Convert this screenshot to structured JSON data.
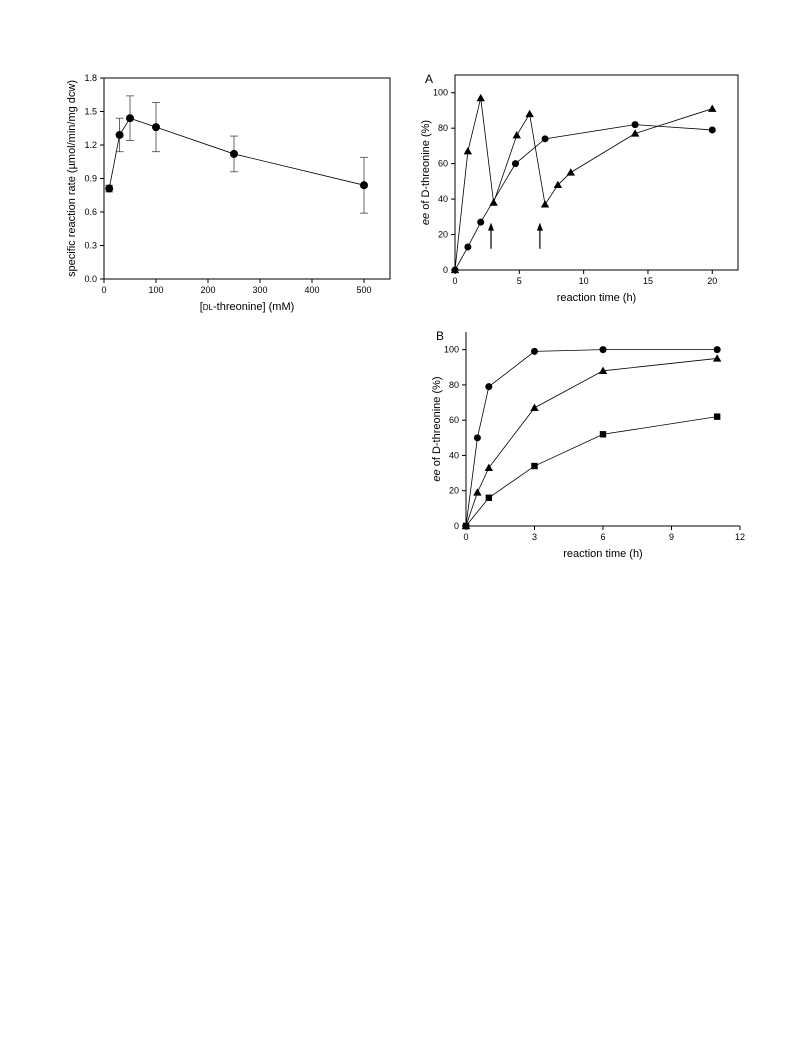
{
  "chart_data": [
    {
      "id": "rate",
      "type": "line",
      "xlabel_pre": "[",
      "xlabel_sc": "dl",
      "xlabel_post": "-threonine] (mM)",
      "ylabel": "specific reaction rate (µmol/min/mg dcw)",
      "xlim": [
        0,
        550
      ],
      "ylim": [
        0,
        1.8
      ],
      "xticks": [
        0,
        100,
        200,
        300,
        400,
        500
      ],
      "yticks": [
        "0.0",
        "0.3",
        "0.6",
        "0.9",
        "1.2",
        "1.5",
        "1.8"
      ],
      "grid": false,
      "series": [
        {
          "marker": "circle",
          "points": [
            {
              "x": 10,
              "y": 0.81,
              "err": 0.03
            },
            {
              "x": 30,
              "y": 1.29,
              "err": 0.15
            },
            {
              "x": 50,
              "y": 1.44,
              "err": 0.2
            },
            {
              "x": 100,
              "y": 1.36,
              "err": 0.22
            },
            {
              "x": 250,
              "y": 1.12,
              "err": 0.16
            },
            {
              "x": 500,
              "y": 0.84,
              "err": 0.25
            }
          ]
        }
      ]
    },
    {
      "id": "A",
      "type": "line",
      "panel_label": "A",
      "xlabel": "reaction time (h)",
      "ylabel_italic": "ee",
      "ylabel_rest": " of D-threonine (%)",
      "xlim": [
        0,
        22
      ],
      "ylim": [
        0,
        110
      ],
      "xticks": [
        0,
        5,
        10,
        15,
        20
      ],
      "yticks": [
        0,
        20,
        40,
        60,
        80,
        100
      ],
      "grid": false,
      "series": [
        {
          "marker": "circle",
          "points": [
            {
              "x": 0,
              "y": 0
            },
            {
              "x": 1,
              "y": 13
            },
            {
              "x": 2,
              "y": 27
            },
            {
              "x": 4.7,
              "y": 60
            },
            {
              "x": 7,
              "y": 74
            },
            {
              "x": 14,
              "y": 82
            },
            {
              "x": 20,
              "y": 79
            }
          ]
        },
        {
          "marker": "triangle",
          "points": [
            {
              "x": 0,
              "y": 0
            },
            {
              "x": 1,
              "y": 67
            },
            {
              "x": 2,
              "y": 97
            },
            {
              "x": 3,
              "y": 38
            },
            {
              "x": 4.8,
              "y": 76
            },
            {
              "x": 5.8,
              "y": 88
            },
            {
              "x": 7,
              "y": 37
            },
            {
              "x": 8,
              "y": 48
            },
            {
              "x": 9,
              "y": 55
            },
            {
              "x": 14,
              "y": 77
            },
            {
              "x": 20,
              "y": 91
            }
          ]
        }
      ],
      "arrows": [
        {
          "x": 2.8,
          "y_from": 12,
          "y_to": 25
        },
        {
          "x": 6.6,
          "y_from": 12,
          "y_to": 25
        }
      ]
    },
    {
      "id": "B",
      "type": "line",
      "panel_label": "B",
      "xlabel": "reaction time (h)",
      "ylabel_italic": "ee",
      "ylabel_rest": " of D-threonine (%)",
      "xlim": [
        0,
        12
      ],
      "ylim": [
        0,
        110
      ],
      "xticks": [
        0,
        3,
        6,
        9,
        12
      ],
      "yticks": [
        0,
        20,
        40,
        60,
        80,
        100
      ],
      "grid": false,
      "series": [
        {
          "marker": "circle",
          "points": [
            {
              "x": 0,
              "y": 0
            },
            {
              "x": 0.5,
              "y": 50
            },
            {
              "x": 1,
              "y": 79
            },
            {
              "x": 3,
              "y": 99
            },
            {
              "x": 6,
              "y": 100
            },
            {
              "x": 11,
              "y": 100
            }
          ]
        },
        {
          "marker": "triangle",
          "points": [
            {
              "x": 0,
              "y": 0
            },
            {
              "x": 0.5,
              "y": 19
            },
            {
              "x": 1,
              "y": 33
            },
            {
              "x": 3,
              "y": 67
            },
            {
              "x": 6,
              "y": 88
            },
            {
              "x": 11,
              "y": 95
            }
          ]
        },
        {
          "marker": "square",
          "points": [
            {
              "x": 0,
              "y": 0
            },
            {
              "x": 1,
              "y": 16
            },
            {
              "x": 3,
              "y": 34
            },
            {
              "x": 6,
              "y": 52
            },
            {
              "x": 11,
              "y": 62
            }
          ]
        }
      ]
    }
  ]
}
